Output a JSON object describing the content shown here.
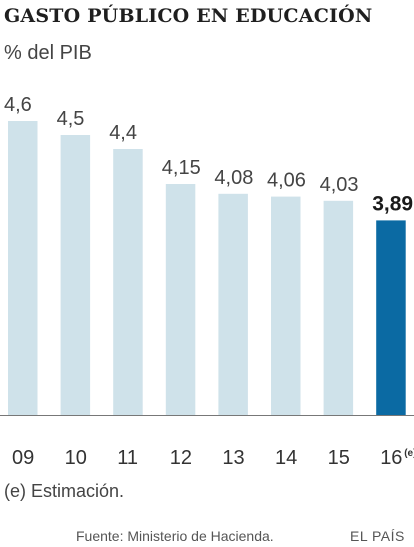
{
  "chart_data": {
    "type": "bar",
    "title": "GASTO PÚBLICO EN EDUCACIÓN",
    "subtitle": "% del PIB",
    "categories": [
      "09",
      "10",
      "11",
      "12",
      "13",
      "14",
      "15",
      "16"
    ],
    "category_suffix": {
      "16": "(e)"
    },
    "values": [
      4.6,
      4.5,
      4.4,
      4.15,
      4.08,
      4.06,
      4.03,
      3.89
    ],
    "value_labels": [
      "4,6",
      "4,5",
      "4,4",
      "4,15",
      "4,08",
      "4,06",
      "4,03",
      "3,89"
    ],
    "highlight_category": "16",
    "y_min": 2.5,
    "grid": false,
    "colors": {
      "bar": "#cfe2ea",
      "highlight": "#0b6aa3",
      "baseline": "#777777"
    }
  },
  "note": "(e) Estimación.",
  "source": "Fuente: Ministerio de Hacienda.",
  "brand": "EL PAÍS"
}
